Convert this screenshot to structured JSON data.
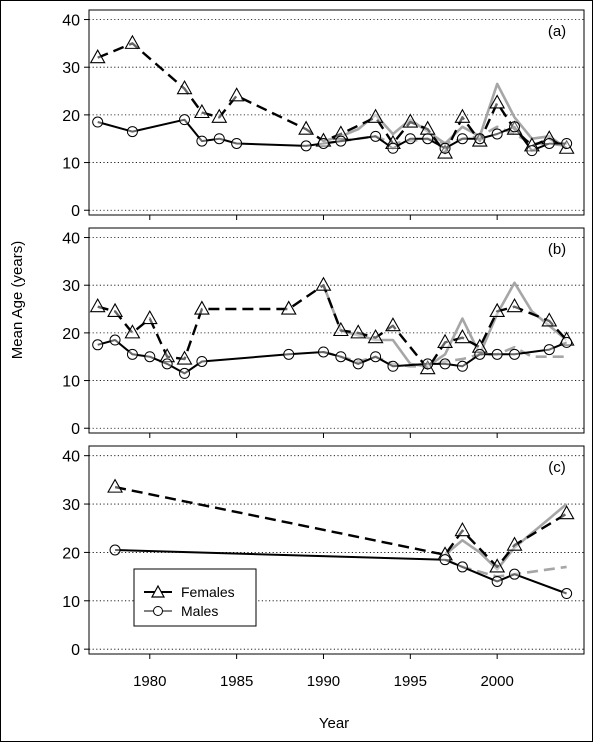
{
  "figure": {
    "ylabel": "Mean Age (years)",
    "xlabel": "Year",
    "x_ticks": [
      1980,
      1985,
      1990,
      1995,
      2000
    ],
    "x_range": [
      1976.5,
      2005
    ],
    "y_ticks": [
      0,
      10,
      20,
      30,
      40
    ],
    "y_range": [
      -1,
      42
    ],
    "gridlines": "dotted horizontal at each y tick",
    "legend": {
      "location": "lower-left of panel (c)",
      "entries": [
        {
          "label": "Females",
          "marker": "triangle",
          "line": "dashed"
        },
        {
          "label": "Males",
          "marker": "circle",
          "line": "solid"
        }
      ]
    },
    "colors": {
      "observed": "#000000",
      "model": "#a6a6a6"
    }
  },
  "chart_data": [
    {
      "type": "line",
      "panel_label": "(a)",
      "series": [
        {
          "name": "Females",
          "role": "observed",
          "style": "dashed",
          "marker": "triangle",
          "x": [
            1977,
            1979,
            1982,
            1983,
            1984,
            1985,
            1989,
            1990,
            1991,
            1993,
            1994,
            1995,
            1996,
            1997,
            1998,
            1999,
            2000,
            2001,
            2002,
            2003,
            2004
          ],
          "y": [
            32,
            35,
            25.5,
            20.5,
            19.5,
            24,
            17,
            14.5,
            16,
            19.5,
            14,
            18.5,
            17,
            12,
            19.5,
            14.5,
            22.5,
            17,
            13.5,
            15,
            13
          ]
        },
        {
          "name": "Males",
          "role": "observed",
          "style": "solid",
          "marker": "circle",
          "x": [
            1977,
            1979,
            1982,
            1983,
            1984,
            1985,
            1989,
            1990,
            1991,
            1993,
            1994,
            1995,
            1996,
            1997,
            1998,
            1999,
            2000,
            2001,
            2002,
            2003,
            2004
          ],
          "y": [
            18.5,
            16.5,
            19,
            14.5,
            15,
            14,
            13.5,
            14,
            14.5,
            15.5,
            13,
            15,
            15,
            13,
            15,
            15,
            16,
            17.5,
            12.5,
            14,
            14
          ]
        },
        {
          "role": "model",
          "group": "Females",
          "style": "solid",
          "x": [
            1990,
            1991,
            1992,
            1993,
            1994,
            1995,
            1996,
            1997,
            1998,
            1999,
            2000,
            2001,
            2002,
            2003,
            2004
          ],
          "y": [
            14.5,
            15.5,
            17,
            20,
            16,
            19,
            16.5,
            14,
            17.5,
            15.5,
            26.5,
            19.5,
            15,
            15.5,
            13
          ]
        },
        {
          "role": "model",
          "group": "Males",
          "style": "dashed",
          "x": [
            1990,
            1991,
            1992,
            1993,
            1994,
            1995,
            1996,
            1997,
            1998,
            1999,
            2000,
            2001,
            2002,
            2003,
            2004
          ],
          "y": [
            14,
            14.5,
            15,
            15.5,
            14,
            14.5,
            15,
            14,
            15,
            15.5,
            17.5,
            16,
            14,
            14,
            13.5
          ]
        }
      ]
    },
    {
      "type": "line",
      "panel_label": "(b)",
      "series": [
        {
          "name": "Females",
          "role": "observed",
          "style": "dashed",
          "marker": "triangle",
          "x": [
            1977,
            1978,
            1979,
            1980,
            1981,
            1982,
            1983,
            1988,
            1990,
            1991,
            1992,
            1993,
            1994,
            1996,
            1997,
            1998,
            1999,
            2000,
            2001,
            2003,
            2004
          ],
          "y": [
            25.5,
            24.5,
            20,
            23,
            15,
            14.5,
            25,
            25,
            30,
            20.5,
            20,
            19,
            21.5,
            12.5,
            18,
            19,
            17,
            24.5,
            25.5,
            22.5,
            18.5
          ]
        },
        {
          "name": "Males",
          "role": "observed",
          "style": "solid",
          "marker": "circle",
          "x": [
            1977,
            1978,
            1979,
            1980,
            1981,
            1982,
            1983,
            1988,
            1990,
            1991,
            1992,
            1993,
            1994,
            1996,
            1997,
            1998,
            1999,
            2000,
            2001,
            2003,
            2004
          ],
          "y": [
            17.5,
            18.5,
            15.5,
            15,
            13.5,
            11.5,
            14,
            15.5,
            16,
            15,
            13.5,
            15,
            13,
            13.5,
            13.5,
            13,
            15.5,
            15.5,
            15.5,
            16.5,
            18
          ]
        },
        {
          "role": "model",
          "group": "Females",
          "style": "solid",
          "x": [
            1990,
            1991,
            1992,
            1993,
            1994,
            1995,
            1996,
            1997,
            1998,
            1999,
            2000,
            2001,
            2002,
            2003,
            2004
          ],
          "y": [
            30,
            20.5,
            19.5,
            18.5,
            18.5,
            13.5,
            13,
            15.5,
            23,
            15.5,
            24,
            30.5,
            24.5,
            21.5,
            18.5
          ]
        },
        {
          "role": "model",
          "group": "Males",
          "style": "dashed",
          "x": [
            1990,
            1991,
            1992,
            1993,
            1994,
            1995,
            1996,
            1997,
            1998,
            1999,
            2000,
            2001,
            2002,
            2003,
            2004
          ],
          "y": [
            16,
            15,
            14,
            15,
            13.5,
            13,
            13,
            14,
            14.5,
            15.5,
            15.5,
            17,
            15,
            15,
            15
          ]
        }
      ]
    },
    {
      "type": "line",
      "panel_label": "(c)",
      "series": [
        {
          "name": "Females",
          "role": "observed",
          "style": "dashed",
          "marker": "triangle",
          "x": [
            1978,
            1997,
            1998,
            2000,
            2001,
            2004
          ],
          "y": [
            33.5,
            19.5,
            24.5,
            17,
            21.5,
            28
          ]
        },
        {
          "name": "Males",
          "role": "observed",
          "style": "solid",
          "marker": "circle",
          "x": [
            1978,
            1997,
            1998,
            2000,
            2001,
            2004
          ],
          "y": [
            20.5,
            18.5,
            17,
            14,
            15.5,
            11.5
          ]
        },
        {
          "role": "model",
          "group": "Females",
          "style": "solid",
          "x": [
            1997,
            1998,
            1999,
            2000,
            2001,
            2002,
            2003,
            2004
          ],
          "y": [
            19.5,
            22.5,
            20,
            16.5,
            21,
            24,
            27,
            30
          ]
        },
        {
          "role": "model",
          "group": "Males",
          "style": "dashed",
          "x": [
            1997,
            1998,
            1999,
            2000,
            2001,
            2002,
            2003,
            2004
          ],
          "y": [
            18.5,
            17,
            16,
            15,
            15.5,
            16,
            16.5,
            17
          ]
        }
      ]
    }
  ]
}
